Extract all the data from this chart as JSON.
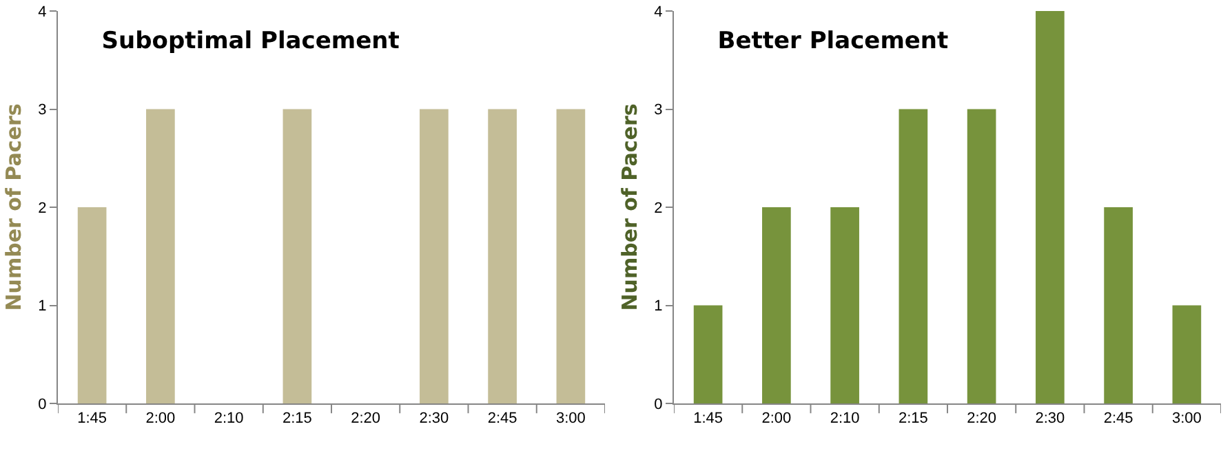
{
  "chart_data": [
    {
      "type": "bar",
      "title": "Suboptimal Placement",
      "ylabel": "Number of Pacers",
      "categories": [
        "1:45",
        "2:00",
        "2:10",
        "2:15",
        "2:20",
        "2:30",
        "2:45",
        "3:00"
      ],
      "values": [
        2,
        3,
        0,
        3,
        0,
        3,
        3,
        3
      ],
      "color": "#c4bd97",
      "ylim": [
        0,
        4
      ],
      "yticks": [
        0,
        1,
        2,
        3,
        4
      ],
      "grid": false
    },
    {
      "type": "bar",
      "title": "Better Placement",
      "ylabel": "Number of Pacers",
      "categories": [
        "1:45",
        "2:00",
        "2:10",
        "2:15",
        "2:20",
        "2:30",
        "2:45",
        "3:00"
      ],
      "values": [
        1,
        2,
        2,
        3,
        3,
        4,
        2,
        1
      ],
      "color": "#77933c",
      "ylim": [
        0,
        4
      ],
      "yticks": [
        0,
        1,
        2,
        3,
        4
      ],
      "grid": false
    }
  ]
}
